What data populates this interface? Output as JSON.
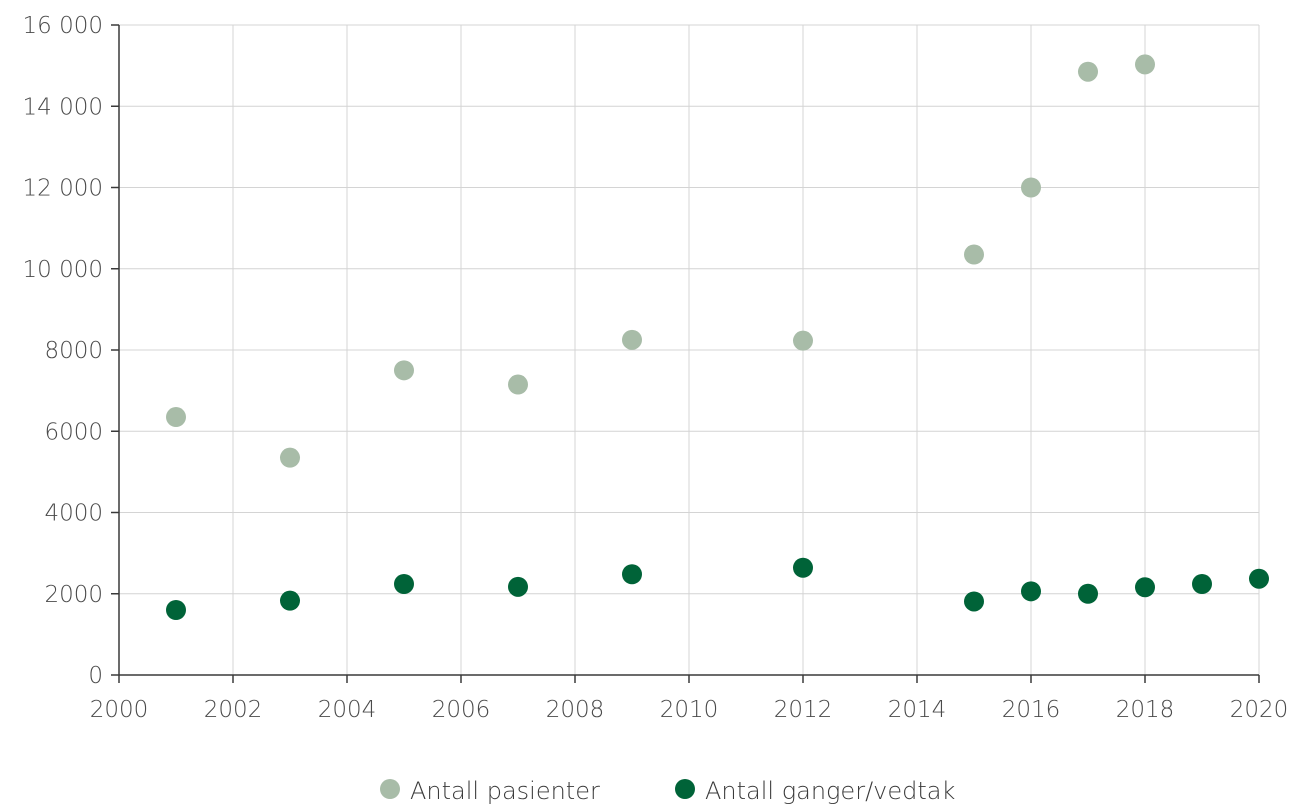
{
  "chart_data": {
    "type": "scatter",
    "title": "",
    "xlabel": "",
    "ylabel": "",
    "xlim": [
      2000,
      2020
    ],
    "ylim": [
      0,
      16000
    ],
    "x_ticks": [
      2000,
      2002,
      2004,
      2006,
      2008,
      2010,
      2012,
      2014,
      2016,
      2018,
      2020
    ],
    "x_tick_labels": [
      "2000",
      "2002",
      "2004",
      "2006",
      "2008",
      "2010",
      "2012",
      "2014",
      "2016",
      "2018",
      "2020"
    ],
    "y_ticks": [
      0,
      2000,
      4000,
      6000,
      8000,
      10000,
      12000,
      14000,
      16000
    ],
    "y_tick_labels": [
      "0",
      "2000",
      "4000",
      "6000",
      "8000",
      "10 000",
      "12 000",
      "14 000",
      "16 000"
    ],
    "grid": true,
    "legend_position": "bottom-center",
    "series": [
      {
        "name": "Antall pasienter",
        "color": "#a8bca8",
        "points": [
          {
            "x": 2001,
            "y": 6350
          },
          {
            "x": 2003,
            "y": 5350
          },
          {
            "x": 2005,
            "y": 7500
          },
          {
            "x": 2007,
            "y": 7150
          },
          {
            "x": 2009,
            "y": 8250
          },
          {
            "x": 2012,
            "y": 8230
          },
          {
            "x": 2015,
            "y": 10350
          },
          {
            "x": 2016,
            "y": 12000
          },
          {
            "x": 2017,
            "y": 14850
          },
          {
            "x": 2018,
            "y": 15030
          }
        ]
      },
      {
        "name": "Antall ganger/vedtak",
        "color": "#006338",
        "points": [
          {
            "x": 2001,
            "y": 1600
          },
          {
            "x": 2003,
            "y": 1830
          },
          {
            "x": 2005,
            "y": 2240
          },
          {
            "x": 2007,
            "y": 2170
          },
          {
            "x": 2009,
            "y": 2480
          },
          {
            "x": 2012,
            "y": 2640
          },
          {
            "x": 2015,
            "y": 1810
          },
          {
            "x": 2016,
            "y": 2060
          },
          {
            "x": 2017,
            "y": 2000
          },
          {
            "x": 2018,
            "y": 2160
          },
          {
            "x": 2019,
            "y": 2240
          },
          {
            "x": 2020,
            "y": 2370
          }
        ]
      }
    ]
  }
}
